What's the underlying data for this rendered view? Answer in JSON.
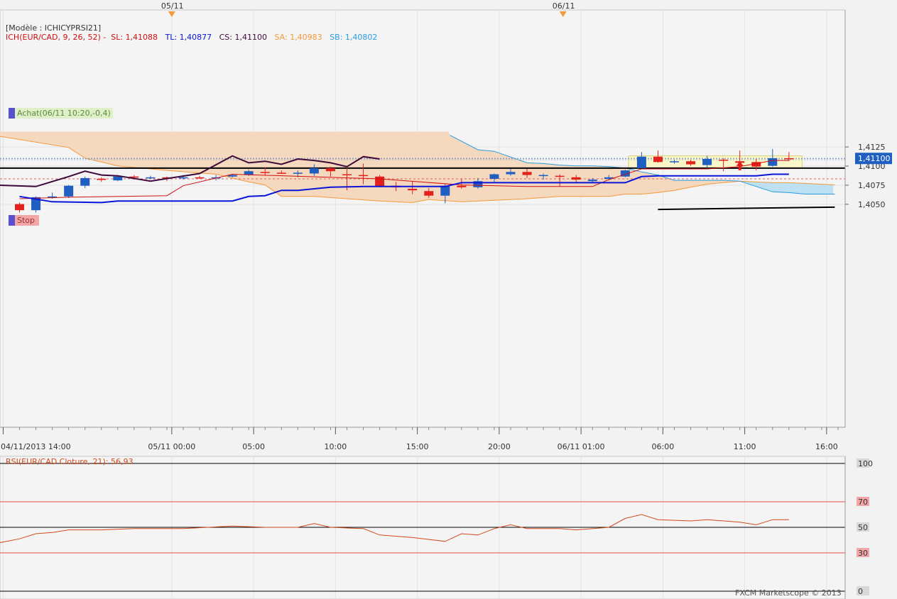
{
  "header": {
    "model_label": "[Modèle : ICHICYPRSI21]",
    "ich_title": "ICH(EUR/CAD, 9, 26, 52) -",
    "sl": "SL: 1,41088",
    "tl": "TL: 1,40877",
    "cs": "CS: 1,41100",
    "sa": "SA: 1,40983",
    "sb": "SB: 1,40802"
  },
  "top_date_markers": [
    "05/11",
    "06/11"
  ],
  "tags": {
    "achat": "Achat(06/11 10:20,-0,4)",
    "stop": "Stop"
  },
  "rsi_title": "RSI(EUR/CAD Cloture, 21): 56,93",
  "watermark": "FXCM Marketscope © 2013",
  "colors": {
    "up": "#1f5fc2",
    "down": "#e2201c",
    "tenkan": "#d01010",
    "kijun": "#0a14d8",
    "chikou": "#3d0a3a",
    "senkou_a": "#f39a3c",
    "senkou_b": "#2b9be0",
    "cloud_bear": "#f5d9be",
    "cloud_bull": "#bde0f2",
    "rsi": "#d24a1a",
    "last_price_label": "#1f5fc2"
  },
  "chart_data": [
    {
      "type": "candlestick",
      "title": "EUR/CAD",
      "x_ticks": [
        "04/11/2013 14:00",
        "05/11 00:00",
        "05:00",
        "10:00",
        "15:00",
        "20:00",
        "06/11 01:00",
        "06:00",
        "11:00",
        "16:00"
      ],
      "y_ticks": [
        "1,4125",
        "1,4100",
        "1,4075",
        "1,4050"
      ],
      "last_price": "1,41100",
      "ylim": [
        1.4035,
        1.4145
      ],
      "interval_hours": 1,
      "candles": [
        {
          "o": 1.40503,
          "h": 1.40523,
          "l": 1.40393,
          "c": 1.40423
        },
        {
          "o": 1.40423,
          "h": 1.40603,
          "l": 1.40393,
          "c": 1.40593
        },
        {
          "o": 1.40593,
          "h": 1.40653,
          "l": 1.40573,
          "c": 1.40603
        },
        {
          "o": 1.40603,
          "h": 1.40753,
          "l": 1.40583,
          "c": 1.40743
        },
        {
          "o": 1.40743,
          "h": 1.40863,
          "l": 1.40713,
          "c": 1.40843
        },
        {
          "o": 1.40833,
          "h": 1.40853,
          "l": 1.40793,
          "c": 1.40823
        },
        {
          "o": 1.40813,
          "h": 1.40873,
          "l": 1.40803,
          "c": 1.40863
        },
        {
          "o": 1.40863,
          "h": 1.40883,
          "l": 1.40823,
          "c": 1.40853
        },
        {
          "o": 1.40853,
          "h": 1.40873,
          "l": 1.40833,
          "c": 1.40853
        },
        {
          "o": 1.40853,
          "h": 1.40863,
          "l": 1.40803,
          "c": 1.40843
        },
        {
          "o": 1.40843,
          "h": 1.40883,
          "l": 1.40823,
          "c": 1.40853
        },
        {
          "o": 1.40853,
          "h": 1.40873,
          "l": 1.40833,
          "c": 1.40843
        },
        {
          "o": 1.40843,
          "h": 1.40883,
          "l": 1.40813,
          "c": 1.40853
        },
        {
          "o": 1.40863,
          "h": 1.40893,
          "l": 1.40853,
          "c": 1.40883
        },
        {
          "o": 1.40883,
          "h": 1.40953,
          "l": 1.40873,
          "c": 1.40933
        },
        {
          "o": 1.40923,
          "h": 1.40983,
          "l": 1.40883,
          "c": 1.40913
        },
        {
          "o": 1.40913,
          "h": 1.40943,
          "l": 1.40903,
          "c": 1.40903
        },
        {
          "o": 1.40913,
          "h": 1.40943,
          "l": 1.40853,
          "c": 1.40913
        },
        {
          "o": 1.40903,
          "h": 1.41023,
          "l": 1.40873,
          "c": 1.40973
        },
        {
          "o": 1.40973,
          "h": 1.40993,
          "l": 1.40863,
          "c": 1.40933
        },
        {
          "o": 1.40893,
          "h": 1.40983,
          "l": 1.40683,
          "c": 1.40883
        },
        {
          "o": 1.40883,
          "h": 1.41033,
          "l": 1.40763,
          "c": 1.40873
        },
        {
          "o": 1.40863,
          "h": 1.40883,
          "l": 1.40723,
          "c": 1.40733
        },
        {
          "o": 1.40743,
          "h": 1.40793,
          "l": 1.40673,
          "c": 1.40723
        },
        {
          "o": 1.40703,
          "h": 1.40803,
          "l": 1.40633,
          "c": 1.40683
        },
        {
          "o": 1.40673,
          "h": 1.40713,
          "l": 1.40583,
          "c": 1.40613
        },
        {
          "o": 1.40613,
          "h": 1.40763,
          "l": 1.40513,
          "c": 1.40743
        },
        {
          "o": 1.40743,
          "h": 1.40833,
          "l": 1.40703,
          "c": 1.40723
        },
        {
          "o": 1.40723,
          "h": 1.40843,
          "l": 1.40703,
          "c": 1.40803
        },
        {
          "o": 1.40833,
          "h": 1.40903,
          "l": 1.40793,
          "c": 1.40893
        },
        {
          "o": 1.40893,
          "h": 1.40963,
          "l": 1.40873,
          "c": 1.40923
        },
        {
          "o": 1.40923,
          "h": 1.40963,
          "l": 1.40843,
          "c": 1.40883
        },
        {
          "o": 1.40883,
          "h": 1.40903,
          "l": 1.40823,
          "c": 1.40883
        },
        {
          "o": 1.40873,
          "h": 1.40893,
          "l": 1.40733,
          "c": 1.40863
        },
        {
          "o": 1.40853,
          "h": 1.40883,
          "l": 1.40783,
          "c": 1.40823
        },
        {
          "o": 1.40803,
          "h": 1.40843,
          "l": 1.40783,
          "c": 1.40823
        },
        {
          "o": 1.40833,
          "h": 1.40883,
          "l": 1.40813,
          "c": 1.40853
        },
        {
          "o": 1.40863,
          "h": 1.40953,
          "l": 1.40853,
          "c": 1.40943
        },
        {
          "o": 1.40973,
          "h": 1.41183,
          "l": 1.40973,
          "c": 1.41123
        },
        {
          "o": 1.41123,
          "h": 1.41203,
          "l": 1.41043,
          "c": 1.41053
        },
        {
          "o": 1.41053,
          "h": 1.41083,
          "l": 1.41033,
          "c": 1.41063
        },
        {
          "o": 1.41063,
          "h": 1.41083,
          "l": 1.41003,
          "c": 1.41023
        },
        {
          "o": 1.41013,
          "h": 1.41133,
          "l": 1.40973,
          "c": 1.41093
        },
        {
          "o": 1.41083,
          "h": 1.41103,
          "l": 1.40933,
          "c": 1.41073
        },
        {
          "o": 1.41063,
          "h": 1.41203,
          "l": 1.41023,
          "c": 1.41043
        },
        {
          "o": 1.41053,
          "h": 1.41093,
          "l": 1.40943,
          "c": 1.40993
        },
        {
          "o": 1.41003,
          "h": 1.41223,
          "l": 1.40993,
          "c": 1.41103
        },
        {
          "o": 1.41103,
          "h": 1.41183,
          "l": 1.41063,
          "c": 1.41093
        }
      ],
      "tenkan": [
        [
          0,
          1.40573
        ],
        [
          3,
          1.40593
        ],
        [
          9,
          1.40613
        ],
        [
          10,
          1.40743
        ],
        [
          13,
          1.40893
        ],
        [
          22,
          1.40833
        ],
        [
          27,
          1.40753
        ],
        [
          31,
          1.40733
        ],
        [
          35,
          1.40733
        ],
        [
          36,
          1.40823
        ],
        [
          38,
          1.40963
        ],
        [
          42,
          1.40963
        ],
        [
          44,
          1.40993
        ],
        [
          46,
          1.41073
        ],
        [
          47,
          1.41073
        ]
      ],
      "kijun": [
        [
          0,
          1.40603
        ],
        [
          2,
          1.40533
        ],
        [
          5,
          1.40523
        ],
        [
          6,
          1.40543
        ],
        [
          13,
          1.40543
        ],
        [
          14,
          1.40603
        ],
        [
          15,
          1.40613
        ],
        [
          16,
          1.40683
        ],
        [
          17,
          1.40683
        ],
        [
          18,
          1.40703
        ],
        [
          19,
          1.40723
        ],
        [
          21,
          1.40733
        ],
        [
          26,
          1.40733
        ],
        [
          27,
          1.40783
        ],
        [
          37,
          1.40783
        ],
        [
          38,
          1.40863
        ],
        [
          39,
          1.40873
        ],
        [
          45,
          1.40873
        ],
        [
          46,
          1.40893
        ],
        [
          47,
          1.40893
        ]
      ],
      "chikou": [
        [
          -1.6,
          1.40753
        ],
        [
          1,
          1.40733
        ],
        [
          3,
          1.40863
        ],
        [
          4,
          1.40933
        ],
        [
          5,
          1.40883
        ],
        [
          6,
          1.40873
        ],
        [
          8,
          1.40803
        ],
        [
          11,
          1.40903
        ],
        [
          13,
          1.41133
        ],
        [
          14,
          1.41043
        ],
        [
          15,
          1.41063
        ],
        [
          16,
          1.41023
        ],
        [
          17,
          1.41093
        ],
        [
          18,
          1.41073
        ],
        [
          19,
          1.41043
        ],
        [
          20,
          1.40993
        ],
        [
          21,
          1.41123
        ],
        [
          22,
          1.41093
        ]
      ],
      "senkou_a": [
        [
          -1.6,
          1.41403
        ],
        [
          3,
          1.41243
        ],
        [
          4,
          1.41103
        ],
        [
          6,
          1.41003
        ],
        [
          9,
          1.40943
        ],
        [
          12,
          1.40893
        ],
        [
          14,
          1.40793
        ],
        [
          15,
          1.40753
        ],
        [
          16,
          1.40603
        ],
        [
          18,
          1.40603
        ],
        [
          20,
          1.40573
        ],
        [
          22,
          1.40543
        ],
        [
          24,
          1.40523
        ],
        [
          25,
          1.40563
        ],
        [
          27,
          1.40533
        ],
        [
          29,
          1.40553
        ],
        [
          31,
          1.40573
        ],
        [
          33,
          1.40603
        ],
        [
          36,
          1.40603
        ],
        [
          37,
          1.40633
        ],
        [
          38,
          1.40633
        ],
        [
          39,
          1.40653
        ],
        [
          40,
          1.40683
        ],
        [
          41,
          1.40723
        ],
        [
          42,
          1.40763
        ],
        [
          43,
          1.40783
        ],
        [
          44,
          1.40803
        ],
        [
          46,
          1.40783
        ],
        [
          47,
          1.40783
        ],
        [
          49,
          1.40763
        ],
        [
          49.8,
          1.40753
        ]
      ],
      "senkou_b": [
        [
          26.3,
          1.41403
        ],
        [
          28,
          1.41213
        ],
        [
          29,
          1.41193
        ],
        [
          31,
          1.41043
        ],
        [
          32,
          1.41033
        ],
        [
          33,
          1.41013
        ],
        [
          34,
          1.41003
        ],
        [
          35,
          1.41003
        ],
        [
          36,
          1.40993
        ],
        [
          37,
          1.40973
        ],
        [
          38,
          1.40923
        ],
        [
          39,
          1.40883
        ],
        [
          40,
          1.40813
        ],
        [
          41,
          1.40813
        ],
        [
          43,
          1.40813
        ],
        [
          44,
          1.40803
        ],
        [
          46,
          1.40663
        ],
        [
          47,
          1.40653
        ],
        [
          48,
          1.40633
        ],
        [
          49.8,
          1.40633
        ]
      ],
      "support_line": {
        "x": [
          -1.6,
          49.8
        ],
        "y": 1.40973
      },
      "trend_line": {
        "points": [
          [
            39,
            1.40433
          ],
          [
            49.8,
            1.40463
          ]
        ]
      },
      "buy_marker": {
        "x": 44,
        "y": 1.4101
      },
      "stop_level": 1.40833,
      "highlight_box": {
        "x": [
          37.2,
          47.8
        ],
        "y": [
          1.40973,
          1.41133
        ]
      }
    },
    {
      "type": "line",
      "title": "RSI(EUR/CAD Cloture, 21): 56,93",
      "y_ticks": [
        "100",
        "70",
        "50",
        "30",
        "0"
      ],
      "levels": [
        100,
        70,
        50,
        30,
        0
      ],
      "ylim": [
        0,
        100
      ],
      "values": [
        [
          -1.6,
          37
        ],
        [
          0,
          41
        ],
        [
          1,
          45
        ],
        [
          2,
          46
        ],
        [
          3,
          48
        ],
        [
          5,
          48
        ],
        [
          7,
          49
        ],
        [
          10,
          49
        ],
        [
          13,
          51
        ],
        [
          15,
          50
        ],
        [
          17,
          50
        ],
        [
          18,
          53
        ],
        [
          19,
          50
        ],
        [
          21,
          49
        ],
        [
          22,
          44
        ],
        [
          24,
          42
        ],
        [
          26,
          39
        ],
        [
          27,
          45
        ],
        [
          28,
          44
        ],
        [
          29,
          49
        ],
        [
          30,
          52
        ],
        [
          31,
          49
        ],
        [
          33,
          49
        ],
        [
          34,
          48
        ],
        [
          36,
          50
        ],
        [
          37,
          57
        ],
        [
          38,
          60
        ],
        [
          39,
          56
        ],
        [
          41,
          55
        ],
        [
          42,
          56
        ],
        [
          44,
          54
        ],
        [
          45,
          52
        ],
        [
          46,
          56
        ],
        [
          47,
          56
        ]
      ]
    }
  ]
}
